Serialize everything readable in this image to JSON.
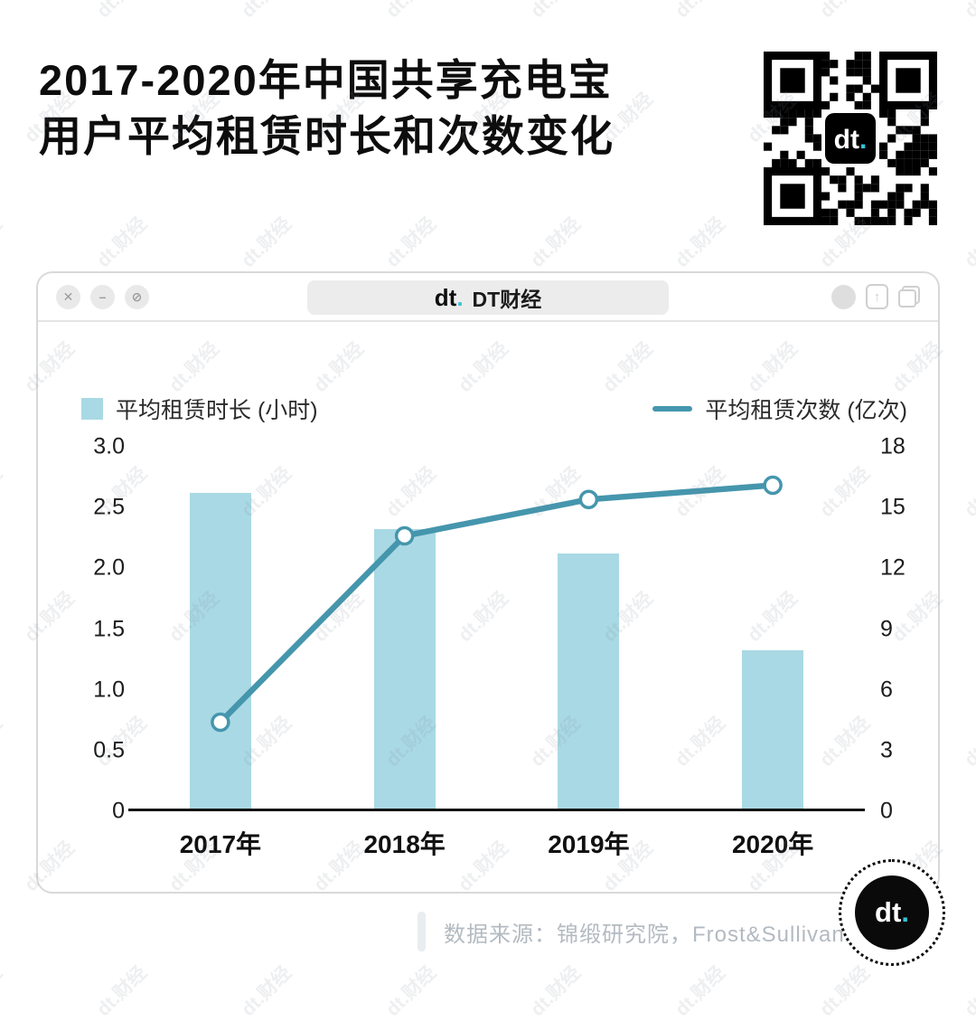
{
  "page": {
    "title_line1": "2017-2020年中国共享充电宝",
    "title_line2": "用户平均租赁时长和次数变化",
    "watermark": "dt.财经"
  },
  "window_bar": {
    "brand_logo_text": "dt",
    "brand_logo_dot": ".",
    "brand_name": "DT财经",
    "controls": {
      "close": "✕",
      "minimize": "–",
      "block": "⊘"
    }
  },
  "chart_data": {
    "type": "bar+line",
    "categories": [
      "2017年",
      "2018年",
      "2019年",
      "2020年"
    ],
    "series": [
      {
        "name": "平均租赁时长 (小时)",
        "type": "bar",
        "axis": "left",
        "values": [
          2.6,
          2.3,
          2.1,
          1.3
        ],
        "color": "#a9d9e4"
      },
      {
        "name": "平均租赁次数 (亿次)",
        "type": "line",
        "axis": "right",
        "values": [
          4.4,
          13.6,
          15.4,
          16.1
        ],
        "color": "#4596ad"
      }
    ],
    "left_axis": {
      "min": 0,
      "max": 3,
      "tick_labels": [
        "3.0",
        "2.5",
        "2.0",
        "1.5",
        "1.0",
        "0.5",
        "0"
      ]
    },
    "right_axis": {
      "min": 0,
      "max": 18,
      "tick_labels": [
        "18",
        "15",
        "12",
        "9",
        "6",
        "3",
        "0"
      ]
    },
    "legend_position": "top",
    "grid": false
  },
  "footer": {
    "source": "数据来源：锦缎研究院，Frost&Sullivan",
    "badge_logo_text": "dt",
    "badge_logo_dot": "."
  },
  "colors": {
    "accent_cyan": "#35c4d7",
    "bar_fill": "#a9d9e4",
    "line_stroke": "#4596ad",
    "axis_line": "#141414"
  }
}
